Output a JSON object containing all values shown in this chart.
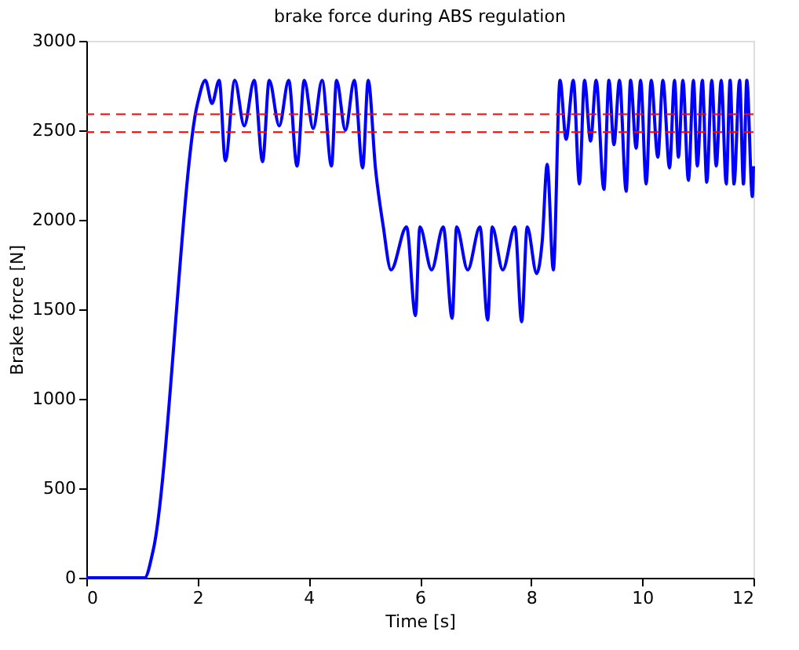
{
  "chart_data": {
    "type": "line",
    "title": "brake force during ABS regulation",
    "xlabel": "Time [s]",
    "ylabel": "Brake force [N]",
    "xlim": [
      0,
      12
    ],
    "xticks": [
      0,
      2,
      4,
      6,
      8,
      10,
      12
    ],
    "ylim": [
      0,
      3000
    ],
    "yticks": [
      0,
      500,
      1000,
      1500,
      2000,
      2500,
      3000
    ],
    "grid": false,
    "line_style": "solid",
    "marker": "none",
    "series": [
      {
        "color": "#0000ff",
        "x": [
          0,
          1.05,
          1.2,
          2.0,
          2.14,
          2.26,
          2.39,
          2.5,
          2.67,
          2.84,
          3.02,
          3.17,
          3.29,
          3.47,
          3.64,
          3.79,
          3.92,
          4.08,
          4.24,
          4.41,
          4.5,
          4.66,
          4.82,
          4.97,
          5.07,
          5.2,
          5.34,
          5.48,
          5.76,
          5.92,
          6.0,
          6.21,
          6.42,
          6.58,
          6.66,
          6.86,
          7.08,
          7.22,
          7.3,
          7.49,
          7.71,
          7.83,
          7.93,
          8.1,
          8.2,
          8.29,
          8.4,
          8.52,
          8.63,
          8.76,
          8.87,
          8.96,
          9.07,
          9.17,
          9.31,
          9.4,
          9.49,
          9.59,
          9.71,
          9.79,
          9.89,
          9.97,
          10.07,
          10.16,
          10.28,
          10.37,
          10.49,
          10.58,
          10.65,
          10.73,
          10.83,
          10.92,
          10.99,
          11.08,
          11.16,
          11.25,
          11.33,
          11.42,
          11.51,
          11.58,
          11.65,
          11.75,
          11.82,
          11.88,
          11.98,
          12.0
        ],
        "values": [
          0,
          0,
          150,
          2650,
          2780,
          2650,
          2780,
          2330,
          2780,
          2525,
          2780,
          2325,
          2780,
          2525,
          2780,
          2300,
          2780,
          2510,
          2780,
          2300,
          2780,
          2500,
          2780,
          2290,
          2780,
          2290,
          1965,
          1720,
          1960,
          1465,
          1960,
          1720,
          1960,
          1450,
          1960,
          1720,
          1960,
          1440,
          1960,
          1720,
          1960,
          1430,
          1960,
          1700,
          1880,
          2310,
          1720,
          2780,
          2450,
          2780,
          2200,
          2780,
          2440,
          2780,
          2170,
          2780,
          2420,
          2780,
          2160,
          2780,
          2400,
          2780,
          2200,
          2780,
          2350,
          2780,
          2290,
          2780,
          2350,
          2780,
          2220,
          2780,
          2300,
          2780,
          2210,
          2780,
          2300,
          2780,
          2200,
          2780,
          2200,
          2780,
          2200,
          2780,
          2130,
          2300
        ]
      }
    ],
    "ref_lines": [
      {
        "axis": "y",
        "value": 2590,
        "color": "#ff0000",
        "line_style": "dashed"
      },
      {
        "axis": "y",
        "value": 2490,
        "color": "#ff0000",
        "line_style": "dashed"
      }
    ]
  }
}
